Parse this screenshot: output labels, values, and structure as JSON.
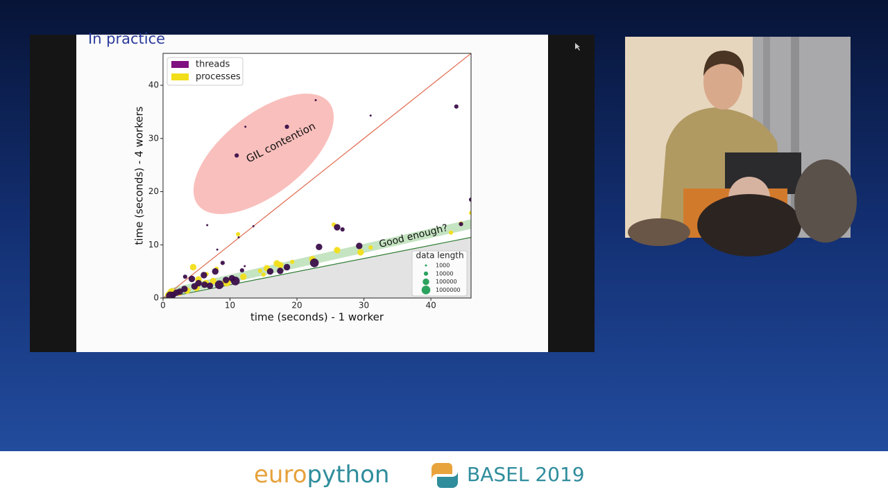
{
  "slide": {
    "title": "In practice"
  },
  "chart_data": {
    "type": "scatter",
    "xlabel": "time (seconds) - 1 worker",
    "ylabel": "time (seconds) - 4 workers",
    "xlim": [
      0,
      46
    ],
    "ylim": [
      0,
      46
    ],
    "xticks": [
      0,
      10,
      20,
      30,
      40
    ],
    "yticks": [
      0,
      10,
      20,
      30,
      40
    ],
    "legend": "upper left",
    "size_legend_title": "data length",
    "size_legend": [
      1000,
      10000,
      100000,
      1000000
    ],
    "annotations": [
      "GIL contention",
      "Good enough?"
    ],
    "reference_lines": [
      {
        "color": "#e06a4e",
        "x": [
          0,
          46
        ],
        "y": [
          0,
          46
        ]
      },
      {
        "color": "#2e7d32",
        "x": [
          0,
          46
        ],
        "y": [
          0,
          11.4
        ]
      }
    ],
    "band": {
      "color": "#9fd29a",
      "x": [
        1,
        46
      ],
      "lower": [
        0.3,
        13
      ],
      "upper": [
        1.8,
        14.8
      ]
    },
    "series": [
      {
        "name": "processes",
        "color": "#f2de1a",
        "x": [
          4.5,
          5.3,
          11.2,
          25.5,
          26,
          29.5,
          31,
          43,
          46,
          22.3,
          19.3,
          17.5,
          15.5,
          14.5,
          12,
          9.5,
          7.5,
          6.4,
          5,
          3.6,
          2.4,
          1.3,
          0.8,
          6.5,
          8,
          15,
          44.5,
          17
        ],
        "y": [
          5.8,
          3.5,
          12,
          13.8,
          9,
          8.6,
          9.5,
          12.3,
          16,
          7.3,
          6.8,
          6.2,
          5.6,
          5.1,
          4,
          3,
          3.2,
          2.8,
          1.9,
          1.4,
          1,
          1,
          0.6,
          4.5,
          5.5,
          4.4,
          14,
          6.5
        ],
        "sizes": [
          100000,
          100000,
          10000,
          10000,
          100000,
          100000,
          10000,
          10000,
          10000,
          100000,
          10000,
          100000,
          100000,
          10000,
          100000,
          1000000,
          100000,
          100000,
          100000,
          100000,
          100000,
          1000000,
          100000,
          10000,
          10000,
          10000,
          10000,
          100000
        ]
      },
      {
        "name": "threads",
        "color": "#3b0f4a",
        "x": [
          12.3,
          11,
          18.5,
          22.8,
          31,
          43.8,
          6.6,
          13.5,
          11.3,
          8.1,
          26,
          26.8,
          23.3,
          29.3,
          22.6,
          18.5,
          16,
          12.2,
          44.5,
          46,
          8.9,
          7.8,
          3.3,
          4.3,
          6.1,
          10.3,
          10.8,
          8.4,
          7,
          6.2,
          4.7,
          3.2,
          2.5,
          2,
          1.5,
          1.1,
          5.3,
          17.5,
          11.8,
          9.4
        ],
        "y": [
          32.2,
          26.8,
          32.2,
          37.2,
          34.3,
          36,
          13.7,
          13.5,
          11.4,
          9.1,
          13.3,
          12.9,
          9.6,
          9.8,
          6.6,
          5.8,
          5,
          6,
          13.9,
          18.5,
          6.6,
          5,
          4,
          3.6,
          4.3,
          3.7,
          3.2,
          2.5,
          2.3,
          2.5,
          2.2,
          1.7,
          1.2,
          1,
          0.6,
          0.4,
          2.8,
          5.1,
          5.2,
          3.4
        ],
        "sizes": [
          1000,
          10000,
          10000,
          1000,
          1000,
          10000,
          1000,
          1000,
          1000,
          1000,
          100000,
          10000,
          100000,
          100000,
          1000000,
          100000,
          100000,
          1000,
          10000,
          10000,
          10000,
          100000,
          10000,
          100000,
          100000,
          100000,
          1000000,
          1000000,
          100000,
          100000,
          100000,
          100000,
          100000,
          100000,
          100000,
          1000000,
          100000,
          100000,
          10000,
          100000
        ]
      }
    ]
  },
  "footer": {
    "brand_left": "euro",
    "brand_right": "python",
    "event": "BASEL 2019"
  }
}
